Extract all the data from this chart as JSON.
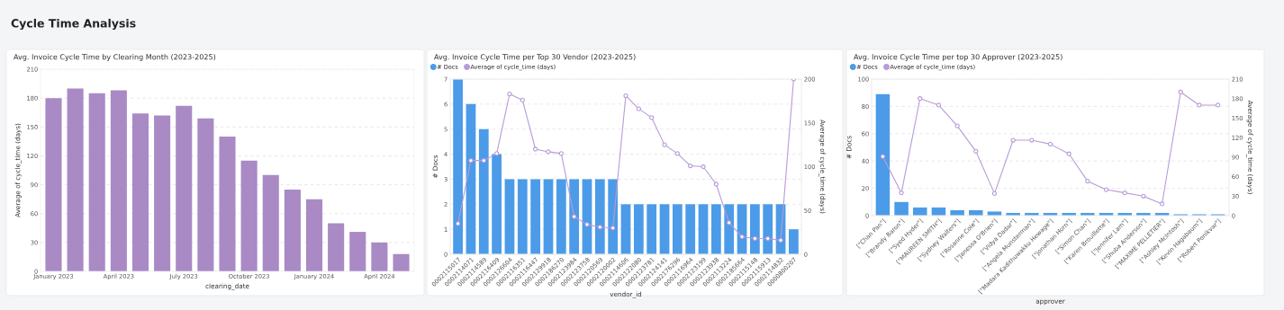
{
  "chart_data": [
    {
      "type": "bar",
      "title": "Avg. Invoice Cycle Time by Clearing Month (2023-2025)",
      "annotations": [
        "Cycle Time Analysis"
      ],
      "xlabel": "clearing_date",
      "ylabel": "Average of cycle_time (days)",
      "categories": [
        "January 2023",
        null,
        null,
        "April 2023",
        null,
        null,
        "July 2023",
        null,
        null,
        "October 2023",
        null,
        null,
        "January 2024",
        null,
        null,
        "April 2024",
        null
      ],
      "series": [
        {
          "color": "#a98ac5",
          "values": [
            180,
            190,
            185,
            188,
            164,
            162,
            172,
            159,
            140,
            115,
            100,
            85,
            75,
            50,
            41,
            30,
            18
          ]
        }
      ],
      "ylim": [
        0,
        210
      ],
      "yticks": [
        0,
        30,
        60,
        90,
        120,
        150,
        180,
        210
      ],
      "grid": "y"
    },
    {
      "type": "bar",
      "title": "Avg. Invoice Cycle Time per Top 30 Vendor (2023-2025)",
      "xlabel": "vendor_id",
      "ylabel": "# Docs",
      "y2label": "Average of cycle_time (days)",
      "categories": [
        "0002115017",
        "0002114071",
        "0002114589",
        "0002116409",
        "0002126604",
        "0002116351",
        "0002116447",
        "0002129918",
        "0002186270",
        "0002123984",
        "0002123758",
        "0002120569",
        "0002120002",
        "0002114606",
        "0002122080",
        "0002123781",
        "0002124141",
        "0002176296",
        "0002116964",
        "0002123199",
        "0002123938",
        "0002113224",
        "0002185664",
        "0002115148",
        "0002115913",
        "0002114832",
        "0000800207"
      ],
      "series": [
        {
          "name": "# Docs",
          "color": "#4c9be8",
          "values": [
            7,
            6,
            5,
            4,
            3,
            3,
            3,
            3,
            3,
            3,
            3,
            3,
            3,
            2,
            2,
            2,
            2,
            2,
            2,
            2,
            2,
            2,
            2,
            2,
            2,
            2,
            1
          ]
        },
        {
          "name": "Average of cycle_time (days)",
          "type": "line",
          "axis": "y2",
          "color": "#b89cd8",
          "values": [
            35,
            107,
            107,
            115,
            183,
            176,
            120,
            117,
            115,
            43,
            34,
            31,
            30,
            181,
            166,
            156,
            125,
            115,
            101,
            100,
            80,
            36,
            20,
            18,
            18,
            16,
            200
          ]
        }
      ],
      "ylim": [
        0,
        7
      ],
      "yticks": [
        0,
        1,
        2,
        3,
        4,
        5,
        6,
        7
      ],
      "y2lim": [
        0,
        200
      ],
      "y2ticks": [
        0,
        50,
        100,
        150,
        200
      ],
      "grid": "y",
      "legend": "top left",
      "marker": "circle"
    },
    {
      "type": "bar",
      "title": "Avg. Invoice Cycle Time per top 30 Approver (2023-2025)",
      "xlabel": "approver",
      "ylabel": "# Docs",
      "y2label": "Average of cycle_time (days)",
      "categories": [
        "[\"Chan Pan\"]",
        "[\"Brandy Baron\"]",
        "[\"Syed Hyder\"]",
        "[\"MAUREEN SMITH\"]",
        "[\"Sydney Walters\"]",
        "[\"Rosanne Cole\"]",
        "[\"Janessa O'Brien\"]",
        "[\"Vidya Dadar\"]",
        "[\"Angela Munsterman\"]",
        "[\"Madara Kadithuwakku Hewage\"]",
        "[\"Jonathan Horn\"]",
        "[\"Simon Chan\"]",
        "[\"Karen Brouillette\"]",
        "[\"Jennifer Lam\"]",
        "[\"Shuba Anderson\"]",
        "[\"MAXIME PELLETIER\"]",
        "[\"Ashley McIntosh\"]",
        "[\"Kevin Hagabaum\"]",
        "[\"Robert Ponikvar\"]"
      ],
      "series": [
        {
          "name": "# Docs",
          "color": "#4c9be8",
          "values": [
            89,
            10,
            6,
            6,
            4,
            4,
            3,
            2,
            2,
            2,
            2,
            2,
            2,
            2,
            2,
            2,
            1,
            1,
            1
          ]
        },
        {
          "name": "Average of cycle_time (days)",
          "type": "line",
          "axis": "y2",
          "color": "#b89cd8",
          "values": [
            91,
            35,
            180,
            170,
            138,
            99,
            34,
            116,
            116,
            110,
            95,
            53,
            40,
            35,
            30,
            18,
            190,
            170,
            170
          ]
        }
      ],
      "ylim": [
        0,
        100
      ],
      "yticks": [
        0,
        20,
        40,
        60,
        80,
        100
      ],
      "y2lim": [
        0,
        210
      ],
      "y2ticks": [
        0,
        30,
        60,
        90,
        120,
        150,
        180,
        210
      ],
      "grid": "y",
      "legend": "top left",
      "marker": "circle"
    }
  ]
}
